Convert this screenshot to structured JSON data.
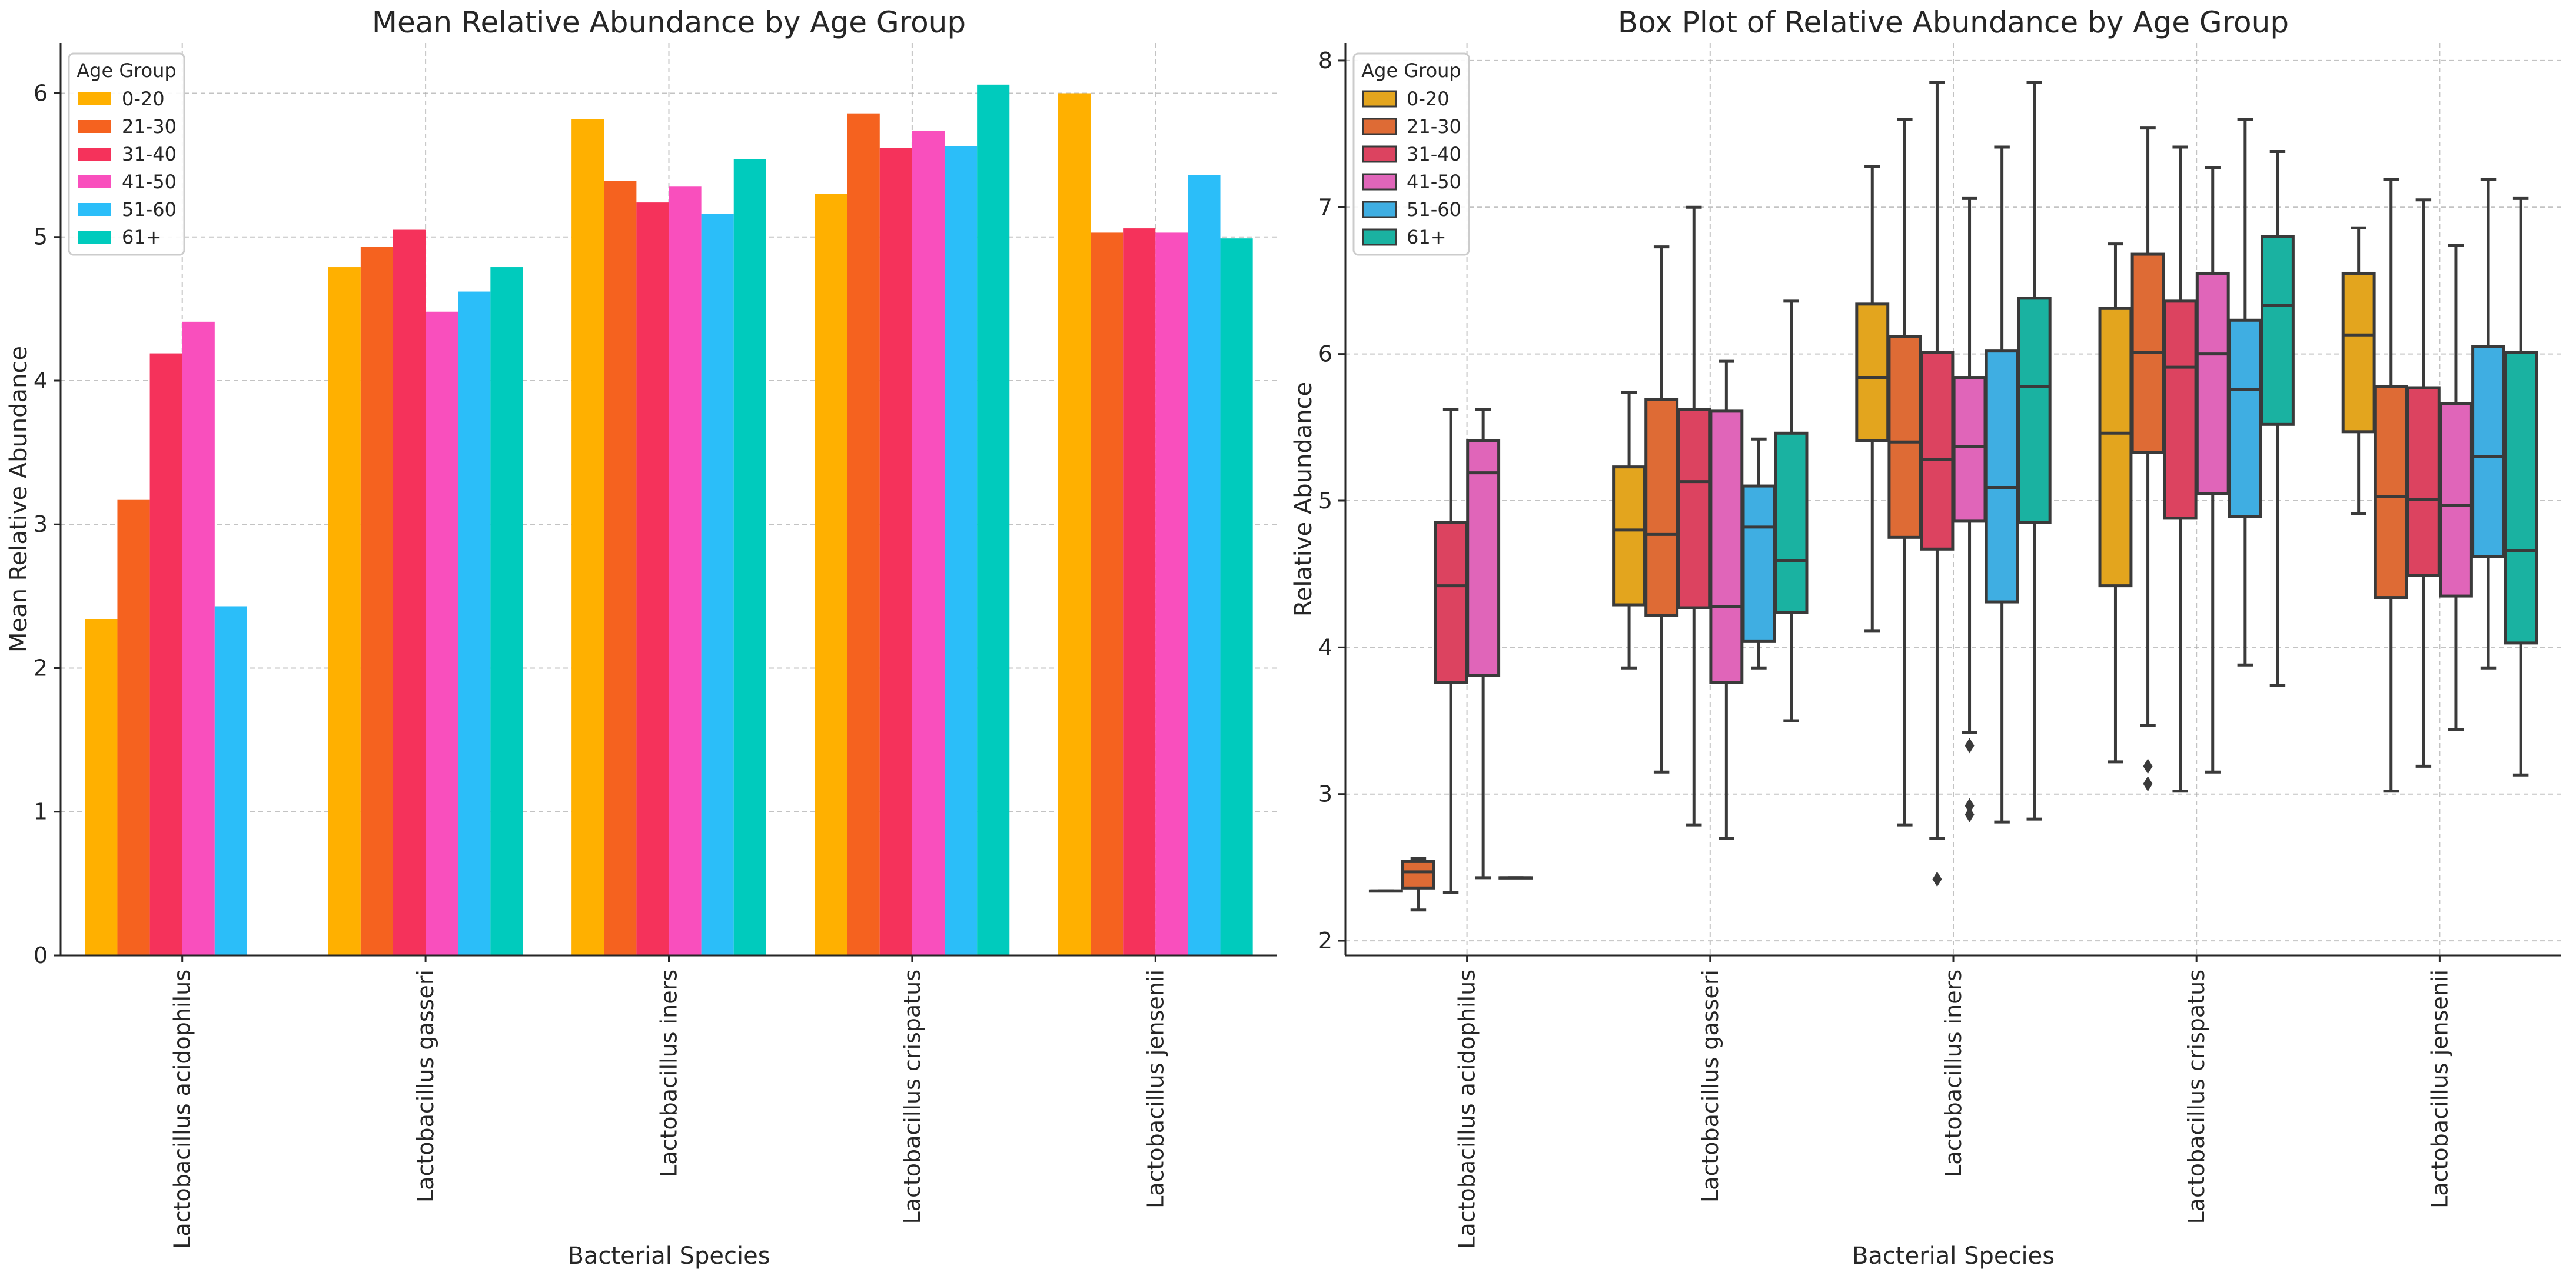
{
  "chart_data": [
    {
      "type": "bar",
      "title": "Mean Relative Abundance by Age Group",
      "xlabel": "Bacterial Species",
      "ylabel": "Mean Relative Abundance",
      "ylim": [
        0,
        6.35
      ],
      "yticks": [
        "0",
        "1",
        "2",
        "3",
        "4",
        "5",
        "6"
      ],
      "grid": true,
      "legend_position": "top-left",
      "legend_title": "Age Group",
      "categories": [
        "Lactobacillus acidophilus",
        "Lactobacillus gasseri",
        "Lactobacillus iners",
        "Lactobacillus crispatus",
        "Lactobacillus jensenii"
      ],
      "series": [
        {
          "name": "0-20",
          "color": "#ffb000",
          "values": [
            2.34,
            4.79,
            5.82,
            5.3,
            6.0
          ]
        },
        {
          "name": "21-30",
          "color": "#f5621f",
          "values": [
            3.17,
            4.93,
            5.39,
            5.86,
            5.03
          ]
        },
        {
          "name": "31-40",
          "color": "#f5325b",
          "values": [
            4.19,
            5.05,
            5.24,
            5.62,
            5.06
          ]
        },
        {
          "name": "41-50",
          "color": "#f94fbd",
          "values": [
            4.41,
            4.48,
            5.35,
            5.74,
            5.03
          ]
        },
        {
          "name": "51-60",
          "color": "#2bbef9",
          "values": [
            2.43,
            4.62,
            5.16,
            5.63,
            5.43
          ]
        },
        {
          "name": "61+",
          "color": "#00cbbd",
          "values": [
            null,
            4.79,
            5.54,
            6.06,
            4.99
          ]
        }
      ]
    },
    {
      "type": "box",
      "title": "Box Plot of Relative Abundance by Age Group",
      "xlabel": "Bacterial Species",
      "ylabel": "Relative Abundance",
      "ylim": [
        1.9,
        8.12
      ],
      "yticks": [
        "2",
        "3",
        "4",
        "5",
        "6",
        "7",
        "8"
      ],
      "grid": true,
      "legend_position": "top-left",
      "legend_title": "Age Group",
      "categories": [
        "Lactobacillus acidophilus",
        "Lactobacillus gasseri",
        "Lactobacillus iners",
        "Lactobacillus crispatus",
        "Lactobacillus jensenii"
      ],
      "series": [
        {
          "name": "0-20",
          "color": "#e3a51e",
          "boxes": [
            {
              "min": 2.34,
              "q1": 2.34,
              "median": 2.34,
              "q3": 2.34,
              "max": 2.34,
              "outliers": []
            },
            {
              "min": 3.86,
              "q1": 4.29,
              "median": 4.8,
              "q3": 5.23,
              "max": 5.74,
              "outliers": []
            },
            {
              "min": 4.11,
              "q1": 5.41,
              "median": 5.84,
              "q3": 6.34,
              "max": 7.28,
              "outliers": []
            },
            {
              "min": 3.22,
              "q1": 4.42,
              "median": 5.46,
              "q3": 6.31,
              "max": 6.75,
              "outliers": []
            },
            {
              "min": 4.91,
              "q1": 5.47,
              "median": 6.13,
              "q3": 6.55,
              "max": 6.86,
              "outliers": []
            }
          ]
        },
        {
          "name": "21-30",
          "color": "#de6b35",
          "boxes": [
            {
              "min": 2.21,
              "q1": 2.36,
              "median": 2.47,
              "q3": 2.54,
              "max": 2.56,
              "outliers": []
            },
            {
              "min": 3.15,
              "q1": 4.22,
              "median": 4.77,
              "q3": 5.69,
              "max": 6.73,
              "outliers": []
            },
            {
              "min": 2.79,
              "q1": 4.75,
              "median": 5.4,
              "q3": 6.12,
              "max": 7.6,
              "outliers": []
            },
            {
              "min": 3.47,
              "q1": 5.33,
              "median": 6.01,
              "q3": 6.68,
              "max": 7.54,
              "outliers": [
                3.19,
                3.07
              ]
            },
            {
              "min": 3.02,
              "q1": 4.34,
              "median": 5.03,
              "q3": 5.78,
              "max": 7.19,
              "outliers": []
            }
          ]
        },
        {
          "name": "31-40",
          "color": "#dc4360",
          "boxes": [
            {
              "min": 2.33,
              "q1": 3.76,
              "median": 4.42,
              "q3": 4.85,
              "max": 5.62,
              "outliers": []
            },
            {
              "min": 2.79,
              "q1": 4.27,
              "median": 5.13,
              "q3": 5.62,
              "max": 7.0,
              "outliers": []
            },
            {
              "min": 2.7,
              "q1": 4.67,
              "median": 5.28,
              "q3": 6.01,
              "max": 7.85,
              "outliers": [
                2.42
              ]
            },
            {
              "min": 3.02,
              "q1": 4.88,
              "median": 5.91,
              "q3": 6.36,
              "max": 7.41,
              "outliers": []
            },
            {
              "min": 3.19,
              "q1": 4.49,
              "median": 5.01,
              "q3": 5.77,
              "max": 7.05,
              "outliers": []
            }
          ]
        },
        {
          "name": "41-50",
          "color": "#e065b9",
          "boxes": [
            {
              "min": 2.43,
              "q1": 3.81,
              "median": 5.19,
              "q3": 5.41,
              "max": 5.62,
              "outliers": []
            },
            {
              "min": 2.7,
              "q1": 3.76,
              "median": 4.28,
              "q3": 5.61,
              "max": 5.95,
              "outliers": []
            },
            {
              "min": 3.42,
              "q1": 4.86,
              "median": 5.37,
              "q3": 5.84,
              "max": 7.06,
              "outliers": [
                3.33,
                2.92,
                2.86
              ]
            },
            {
              "min": 3.15,
              "q1": 5.05,
              "median": 6.0,
              "q3": 6.55,
              "max": 7.27,
              "outliers": []
            },
            {
              "min": 3.44,
              "q1": 4.35,
              "median": 4.97,
              "q3": 5.66,
              "max": 6.74,
              "outliers": []
            }
          ]
        },
        {
          "name": "51-60",
          "color": "#3faee2",
          "boxes": [
            {
              "min": 2.43,
              "q1": 2.43,
              "median": 2.43,
              "q3": 2.43,
              "max": 2.43,
              "outliers": []
            },
            {
              "min": 3.86,
              "q1": 4.04,
              "median": 4.82,
              "q3": 5.1,
              "max": 5.42,
              "outliers": []
            },
            {
              "min": 2.81,
              "q1": 4.31,
              "median": 5.09,
              "q3": 6.02,
              "max": 7.41,
              "outliers": []
            },
            {
              "min": 3.88,
              "q1": 4.89,
              "median": 5.76,
              "q3": 6.23,
              "max": 7.6,
              "outliers": []
            },
            {
              "min": 3.86,
              "q1": 4.62,
              "median": 5.3,
              "q3": 6.05,
              "max": 7.19,
              "outliers": []
            }
          ]
        },
        {
          "name": "61+",
          "color": "#1ab2a1",
          "boxes": [
            null,
            {
              "min": 3.5,
              "q1": 4.24,
              "median": 4.59,
              "q3": 5.46,
              "max": 6.36,
              "outliers": []
            },
            {
              "min": 2.83,
              "q1": 4.85,
              "median": 5.78,
              "q3": 6.38,
              "max": 7.85,
              "outliers": []
            },
            {
              "min": 3.74,
              "q1": 5.52,
              "median": 6.33,
              "q3": 6.8,
              "max": 7.38,
              "outliers": []
            },
            {
              "min": 3.13,
              "q1": 4.03,
              "median": 4.66,
              "q3": 6.01,
              "max": 7.06,
              "outliers": []
            }
          ]
        }
      ]
    }
  ]
}
